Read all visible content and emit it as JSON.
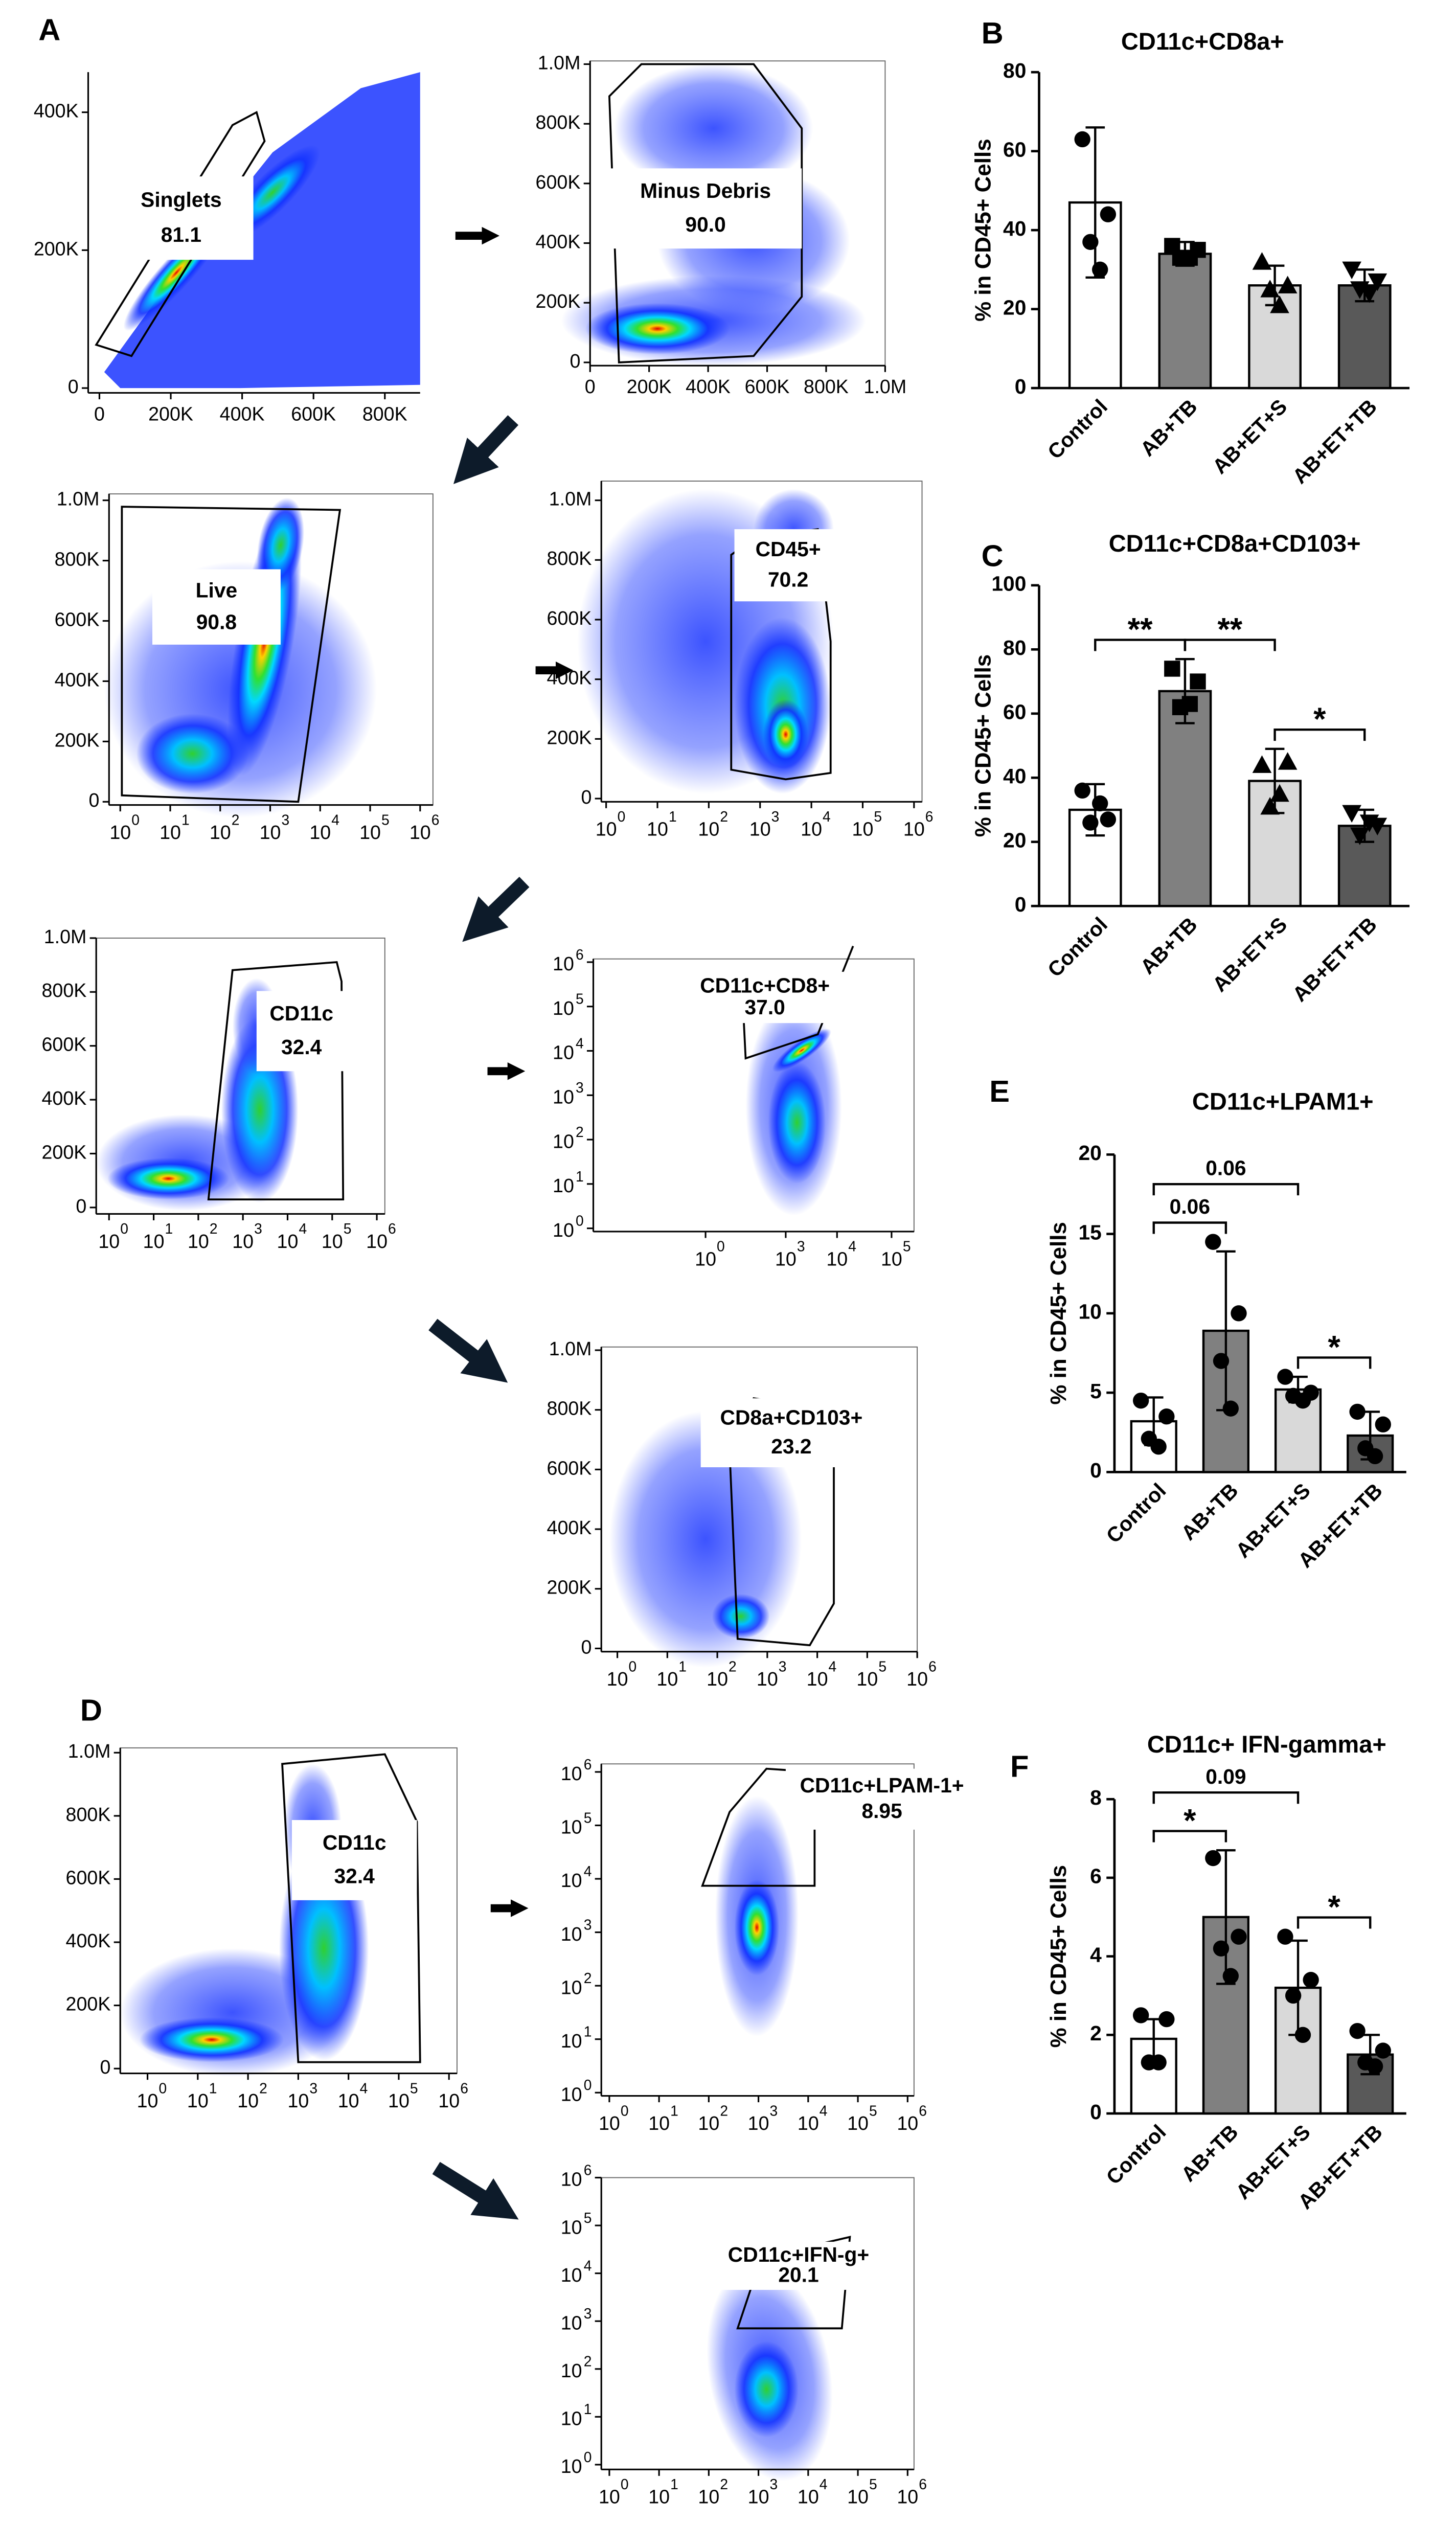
{
  "panel_letters": [
    "A",
    "D"
  ],
  "log_base": "10",
  "flow_panels": [
    {
      "gate_name": "Singlets",
      "gate_pct": "81.1",
      "yticks": [
        "0",
        "200K",
        "400K"
      ],
      "xticks": [
        "0",
        "200K",
        "400K",
        "600K",
        "800K"
      ]
    },
    {
      "gate_name": "Minus Debris",
      "gate_pct": "90.0",
      "yticks": [
        "0",
        "200K",
        "400K",
        "600K",
        "800K",
        "1.0M"
      ],
      "xticks": [
        "0",
        "200K",
        "400K",
        "600K",
        "800K",
        "1.0M"
      ]
    },
    {
      "gate_name": "Live",
      "gate_pct": "90.8",
      "yticks": [
        "0",
        "200K",
        "400K",
        "600K",
        "800K",
        "1.0M"
      ],
      "xticks_exp": [
        "0",
        "1",
        "2",
        "3",
        "4",
        "5",
        "6"
      ]
    },
    {
      "gate_name": "CD45+",
      "gate_pct": "70.2",
      "yticks": [
        "0",
        "200K",
        "400K",
        "600K",
        "800K",
        "1.0M"
      ],
      "xticks_exp": [
        "0",
        "1",
        "2",
        "3",
        "4",
        "5",
        "6"
      ]
    },
    {
      "gate_name": "CD11c",
      "gate_pct": "32.4",
      "yticks": [
        "0",
        "200K",
        "400K",
        "600K",
        "800K",
        "1.0M"
      ],
      "xticks_exp": [
        "0",
        "1",
        "2",
        "3",
        "4",
        "5",
        "6"
      ]
    },
    {
      "gate_name": "CD11c+CD8+",
      "gate_pct": "37.0",
      "yticks_exp": [
        "0",
        "1",
        "2",
        "3",
        "4",
        "5",
        "6"
      ],
      "xticks_exp": [
        "0",
        "3",
        "4",
        "5"
      ]
    },
    {
      "gate_name": "CD8a+CD103+",
      "gate_pct": "23.2",
      "yticks": [
        "0",
        "200K",
        "400K",
        "600K",
        "800K",
        "1.0M"
      ],
      "xticks_exp": [
        "0",
        "1",
        "2",
        "3",
        "4",
        "5",
        "6"
      ]
    },
    {
      "gate_name": "CD11c",
      "gate_pct": "32.4",
      "yticks": [
        "0",
        "200K",
        "400K",
        "600K",
        "800K",
        "1.0M"
      ],
      "xticks_exp": [
        "0",
        "1",
        "2",
        "3",
        "4",
        "5",
        "6"
      ]
    },
    {
      "gate_name": "CD11c+LPAM-1+",
      "gate_pct": "8.95",
      "yticks_exp": [
        "0",
        "1",
        "2",
        "3",
        "4",
        "5",
        "6"
      ],
      "xticks_exp": [
        "0",
        "1",
        "2",
        "3",
        "4",
        "5",
        "6"
      ]
    },
    {
      "gate_name": "CD11c+IFN-g+",
      "gate_pct": "20.1",
      "yticks_exp": [
        "0",
        "1",
        "2",
        "3",
        "4",
        "5",
        "6"
      ],
      "xticks_exp": [
        "0",
        "1",
        "2",
        "3",
        "4",
        "5",
        "6"
      ]
    }
  ],
  "chart_data": [
    {
      "type": "bar",
      "panel": "B",
      "title": "CD11c+CD8a+",
      "ylabel": "% in CD45+ Cells",
      "categories": [
        "Control",
        "AB+TB",
        "AB+ET+S",
        "AB+ET+TB"
      ],
      "values": [
        47,
        34,
        26,
        26
      ],
      "errors": [
        19,
        3,
        5,
        4
      ],
      "points": [
        [
          63,
          44,
          37,
          30
        ],
        [
          36,
          35,
          33,
          33
        ],
        [
          32,
          26,
          25,
          21
        ],
        [
          30,
          27,
          25,
          24
        ]
      ],
      "colors": [
        "#ffffff",
        "#808080",
        "#d9d9d9",
        "#595959"
      ],
      "markers": [
        "circle",
        "square",
        "triangle",
        "triangle-down"
      ],
      "ylim": [
        0,
        80
      ],
      "yticks": [
        0,
        20,
        40,
        60,
        80
      ],
      "annotations": []
    },
    {
      "type": "bar",
      "panel": "C",
      "title": "CD11c+CD8a+CD103+",
      "ylabel": "% in CD45+ Cells",
      "categories": [
        "Control",
        "AB+TB",
        "AB+ET+S",
        "AB+ET+TB"
      ],
      "values": [
        30,
        67,
        39,
        25
      ],
      "errors": [
        8,
        10,
        10,
        5
      ],
      "points": [
        [
          36,
          27,
          26,
          32
        ],
        [
          74,
          70,
          62,
          63
        ],
        [
          44,
          45,
          31,
          35
        ],
        [
          29,
          25,
          22,
          26
        ]
      ],
      "colors": [
        "#ffffff",
        "#808080",
        "#d9d9d9",
        "#595959"
      ],
      "markers": [
        "circle",
        "square",
        "triangle",
        "triangle-down"
      ],
      "ylim": [
        0,
        100
      ],
      "yticks": [
        0,
        20,
        40,
        60,
        80,
        100
      ],
      "annotations": [
        {
          "text": "**",
          "from": "Control",
          "to": "AB+TB"
        },
        {
          "text": "**",
          "from": "AB+TB",
          "to": "AB+ET+S"
        },
        {
          "text": "*",
          "from": "AB+ET+S",
          "to": "AB+ET+TB"
        }
      ]
    },
    {
      "type": "bar",
      "panel": "E",
      "title": "CD11c+LPAM1+",
      "ylabel": "% in CD45+ Cells",
      "categories": [
        "Control",
        "AB+TB",
        "AB+ET+S",
        "AB+ET+TB"
      ],
      "values": [
        3.2,
        8.9,
        5.2,
        2.3
      ],
      "errors": [
        1.5,
        5,
        0.8,
        1.5
      ],
      "points": [
        [
          4.5,
          3.5,
          2.1,
          1.6
        ],
        [
          14.5,
          10,
          7,
          4
        ],
        [
          6,
          5,
          4.8,
          4.5
        ],
        [
          3.8,
          3,
          1.5,
          1
        ]
      ],
      "colors": [
        "#ffffff",
        "#808080",
        "#d9d9d9",
        "#595959"
      ],
      "markers": [
        "circle",
        "circle",
        "circle",
        "circle"
      ],
      "ylim": [
        0,
        20
      ],
      "yticks": [
        0,
        5,
        10,
        15,
        20
      ],
      "annotations": [
        {
          "text": "0.06",
          "from": "Control",
          "to": "AB+TB"
        },
        {
          "text": "0.06",
          "from": "Control",
          "to": "AB+ET+S"
        },
        {
          "text": "*",
          "from": "AB+ET+S",
          "to": "AB+ET+TB"
        }
      ]
    },
    {
      "type": "bar",
      "panel": "F",
      "title": "CD11c+ IFN-gamma+",
      "ylabel": "% in CD45+ Cells",
      "categories": [
        "Control",
        "AB+TB",
        "AB+ET+S",
        "AB+ET+TB"
      ],
      "values": [
        1.9,
        5.0,
        3.2,
        1.5
      ],
      "errors": [
        0.5,
        1.7,
        1.2,
        0.5
      ],
      "points": [
        [
          2.5,
          2.4,
          1.3,
          1.3
        ],
        [
          6.5,
          4.5,
          4.2,
          3.5
        ],
        [
          4.5,
          3.4,
          3.0,
          2.0
        ],
        [
          2.1,
          1.6,
          1.3,
          1.2
        ]
      ],
      "colors": [
        "#ffffff",
        "#808080",
        "#d9d9d9",
        "#595959"
      ],
      "markers": [
        "circle",
        "circle",
        "circle",
        "circle"
      ],
      "ylim": [
        0,
        8
      ],
      "yticks": [
        0,
        2,
        4,
        6,
        8
      ],
      "annotations": [
        {
          "text": "*",
          "from": "Control",
          "to": "AB+TB"
        },
        {
          "text": "0.09",
          "from": "Control",
          "to": "AB+ET+S"
        },
        {
          "text": "*",
          "from": "AB+ET+S",
          "to": "AB+ET+TB"
        }
      ]
    }
  ]
}
